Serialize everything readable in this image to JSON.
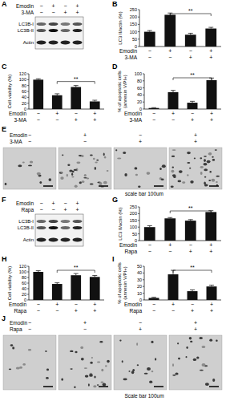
{
  "blots": [
    {
      "panel": "A",
      "conditions": [
        {
          "name": "Emodin",
          "signs": [
            "−",
            "+",
            "−",
            "+"
          ]
        },
        {
          "name": "3-MA",
          "signs": [
            "−",
            "−",
            "+",
            "+"
          ]
        }
      ],
      "bands": [
        "LC3B-I",
        "LC3B-II",
        "Actin"
      ]
    },
    {
      "panel": "F",
      "conditions": [
        {
          "name": "Emodin",
          "signs": [
            "−",
            "+",
            "−",
            "+"
          ]
        },
        {
          "name": "Rapa",
          "signs": [
            "−",
            "−",
            "+",
            "+"
          ]
        }
      ],
      "bands": [
        "LC3B-I",
        "LC3B-II",
        "Actin"
      ]
    }
  ],
  "micrographs": [
    {
      "panel": "E",
      "conditions": [
        {
          "name": "Emodin",
          "signs": [
            "−",
            "+",
            "−",
            "+"
          ]
        },
        {
          "name": "3-MA",
          "signs": [
            "−",
            "−",
            "+",
            "+"
          ]
        }
      ],
      "scale_label": "scale bar 100um"
    },
    {
      "panel": "J",
      "conditions": [
        {
          "name": "Emodin",
          "signs": [
            "−",
            "+",
            "−",
            "+"
          ]
        },
        {
          "name": "Rapa",
          "signs": [
            "−",
            "−",
            "+",
            "+"
          ]
        }
      ],
      "scale_label": "Scale bar 100um"
    }
  ],
  "chart_data": [
    {
      "panel": "B",
      "type": "bar",
      "y_label": [
        "LC3 II/actin (%)"
      ],
      "categories": [
        null,
        null,
        null,
        null
      ],
      "x_rows": [
        {
          "label": "Emodin",
          "values": [
            "−",
            "+",
            "−",
            "+"
          ]
        },
        {
          "label": "3-MA",
          "values": [
            "−",
            "−",
            "+",
            "+"
          ]
        }
      ],
      "values": [
        100,
        215,
        80,
        122
      ],
      "errors": [
        8,
        12,
        10,
        8
      ],
      "color": "#111111",
      "ylim": [
        0,
        250
      ],
      "yticks": [
        0,
        50,
        100,
        150,
        200,
        250
      ],
      "annotations": [
        {
          "text": "**",
          "between": [
            1,
            3
          ]
        }
      ]
    },
    {
      "panel": "C",
      "type": "bar",
      "y_label": [
        "Cell viability (%)"
      ],
      "categories": [
        null,
        null,
        null,
        null
      ],
      "x_rows": [
        {
          "label": "Emodin",
          "values": [
            "−",
            "+",
            "−",
            "+"
          ]
        },
        {
          "label": "3-MA",
          "values": [
            "−",
            "−",
            "+",
            "+"
          ]
        }
      ],
      "values": [
        100,
        47,
        75,
        26
      ],
      "errors": [
        3,
        5,
        5,
        4
      ],
      "color": "#111111",
      "ylim": [
        0,
        120
      ],
      "yticks": [
        0,
        20,
        40,
        60,
        80,
        100,
        120
      ],
      "annotations": [
        {
          "text": "**",
          "between": [
            1,
            3
          ]
        }
      ]
    },
    {
      "panel": "D",
      "type": "bar",
      "y_label": [
        "% of apoptotic cells",
        "(annexin V/PI+)"
      ],
      "categories": [
        null,
        null,
        null,
        null
      ],
      "x_rows": [
        {
          "label": "Emodin",
          "values": [
            "−",
            "+",
            "−",
            "+"
          ]
        },
        {
          "label": "3-MA",
          "values": [
            "−",
            "−",
            "+",
            "+"
          ]
        }
      ],
      "values": [
        3,
        48,
        18,
        82
      ],
      "errors": [
        1,
        5,
        4,
        6
      ],
      "color": "#111111",
      "ylim": [
        0,
        100
      ],
      "yticks": [
        0,
        20,
        40,
        60,
        80,
        100
      ],
      "annotations": [
        {
          "text": "**",
          "between": [
            1,
            3
          ]
        }
      ]
    },
    {
      "panel": "G",
      "type": "bar",
      "y_label": [
        "LC3 II/actin (%)"
      ],
      "categories": [
        null,
        null,
        null,
        null
      ],
      "x_rows": [
        {
          "label": "Emodin",
          "values": [
            "−",
            "+",
            "−",
            "+"
          ]
        },
        {
          "label": "Rapa",
          "values": [
            "−",
            "−",
            "+",
            "+"
          ]
        }
      ],
      "values": [
        100,
        165,
        148,
        212
      ],
      "errors": [
        10,
        6,
        8,
        10
      ],
      "color": "#111111",
      "ylim": [
        0,
        250
      ],
      "yticks": [
        0,
        50,
        100,
        150,
        200,
        250
      ],
      "annotations": [
        {
          "text": "**",
          "between": [
            1,
            3
          ]
        }
      ]
    },
    {
      "panel": "H",
      "type": "bar",
      "y_label": [
        "Cell viability (%)"
      ],
      "categories": [
        null,
        null,
        null,
        null
      ],
      "x_rows": [
        {
          "label": "Emodin",
          "values": [
            "−",
            "+",
            "−",
            "+"
          ]
        },
        {
          "label": "Rapa",
          "values": [
            "−",
            "−",
            "+",
            "+"
          ]
        }
      ],
      "values": [
        100,
        57,
        88,
        82
      ],
      "errors": [
        4,
        4,
        6,
        5
      ],
      "color": "#111111",
      "ylim": [
        0,
        120
      ],
      "yticks": [
        0,
        20,
        40,
        60,
        80,
        100,
        120
      ],
      "annotations": [
        {
          "text": "**",
          "between": [
            1,
            3
          ]
        }
      ]
    },
    {
      "panel": "I",
      "type": "bar",
      "y_label": [
        "% of apoptotic cells",
        "(annexin V/PI+)"
      ],
      "categories": [
        null,
        null,
        null,
        null
      ],
      "x_rows": [
        {
          "label": "Emodin",
          "values": [
            "−",
            "+",
            "−",
            "+"
          ]
        },
        {
          "label": "Rapa",
          "values": [
            "−",
            "−",
            "+",
            "+"
          ]
        }
      ],
      "values": [
        3,
        38,
        13,
        20
      ],
      "errors": [
        1,
        6,
        2,
        2
      ],
      "color": "#111111",
      "ylim": [
        0,
        50
      ],
      "yticks": [
        0,
        10,
        20,
        30,
        40,
        50
      ],
      "annotations": [
        {
          "text": "**",
          "between": [
            1,
            3
          ]
        }
      ]
    }
  ]
}
